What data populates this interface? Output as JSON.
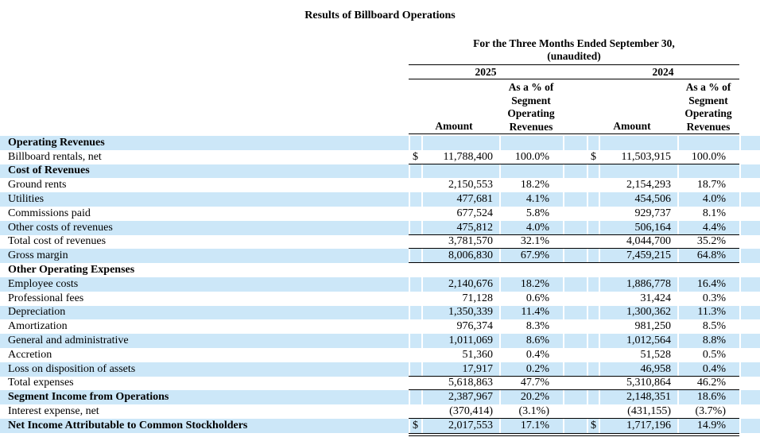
{
  "title": "Results of Billboard Operations",
  "table": {
    "period_header_line1": "For the Three Months Ended September 30,",
    "period_header_line2": "(unaudited)",
    "years": [
      "2025",
      "2024"
    ],
    "columns": {
      "amount": "Amount",
      "pct_lines": [
        "As a % of",
        "Segment",
        "Operating",
        "Revenues"
      ]
    },
    "colors": {
      "stripe_blue": "#cce7f8",
      "rule_black": "#000000",
      "text": "#000000"
    },
    "rows": [
      {
        "label": "Operating Revenues",
        "bold": true,
        "shaded": true
      },
      {
        "label": "Billboard rentals, net",
        "dollar": "$",
        "a1": "11,788,400",
        "p1": "100.0%",
        "a2": "11,503,915",
        "p2": "100.0%",
        "rule": "single"
      },
      {
        "label": "Cost of Revenues",
        "bold": true,
        "shaded": true
      },
      {
        "label": "Ground rents",
        "a1": "2,150,553",
        "p1": "18.2%",
        "a2": "2,154,293",
        "p2": "18.7%"
      },
      {
        "label": "Utilities",
        "shaded": true,
        "a1": "477,681",
        "p1": "4.1%",
        "a2": "454,506",
        "p2": "4.0%"
      },
      {
        "label": "Commissions paid",
        "a1": "677,524",
        "p1": "5.8%",
        "a2": "929,737",
        "p2": "8.1%"
      },
      {
        "label": "Other costs of revenues",
        "shaded": true,
        "a1": "475,812",
        "p1": "4.0%",
        "a2": "506,164",
        "p2": "4.4%",
        "rule": "single"
      },
      {
        "label": "Total cost of revenues",
        "a1": "3,781,570",
        "p1": "32.1%",
        "a2": "4,044,700",
        "p2": "35.2%",
        "rule": "single"
      },
      {
        "label": "Gross margin",
        "shaded": true,
        "a1": "8,006,830",
        "p1": "67.9%",
        "a2": "7,459,215",
        "p2": "64.8%",
        "rule": "single"
      },
      {
        "label": "Other Operating Expenses",
        "bold": true
      },
      {
        "label": "Employee costs",
        "shaded": true,
        "a1": "2,140,676",
        "p1": "18.2%",
        "a2": "1,886,778",
        "p2": "16.4%"
      },
      {
        "label": "Professional fees",
        "a1": "71,128",
        "p1": "0.6%",
        "a2": "31,424",
        "p2": "0.3%"
      },
      {
        "label": "Depreciation",
        "shaded": true,
        "a1": "1,350,339",
        "p1": "11.4%",
        "a2": "1,300,362",
        "p2": "11.3%"
      },
      {
        "label": "Amortization",
        "a1": "976,374",
        "p1": "8.3%",
        "a2": "981,250",
        "p2": "8.5%"
      },
      {
        "label": "General and administrative",
        "shaded": true,
        "a1": "1,011,069",
        "p1": "8.6%",
        "a2": "1,012,564",
        "p2": "8.8%"
      },
      {
        "label": "Accretion",
        "a1": "51,360",
        "p1": "0.4%",
        "a2": "51,528",
        "p2": "0.5%"
      },
      {
        "label": "Loss on disposition of assets",
        "shaded": true,
        "a1": "17,917",
        "p1": "0.2%",
        "a2": "46,958",
        "p2": "0.4%",
        "rule": "single"
      },
      {
        "label": "Total expenses",
        "a1": "5,618,863",
        "p1": "47.7%",
        "a2": "5,310,864",
        "p2": "46.2%",
        "rule": "single"
      },
      {
        "label": "Segment Income from Operations",
        "bold": true,
        "shaded": true,
        "a1": "2,387,967",
        "p1": "20.2%",
        "a2": "2,148,351",
        "p2": "18.6%"
      },
      {
        "label": "Interest expense, net",
        "a1": "(370,414)",
        "p1": "(3.1%)",
        "a2": "(431,155)",
        "p2": "(3.7%)",
        "rule": "single"
      },
      {
        "label": "Net Income Attributable to Common Stockholders",
        "bold": true,
        "shaded": true,
        "dollar": "$",
        "a1": "2,017,553",
        "p1": "17.1%",
        "a2": "1,717,196",
        "p2": "14.9%",
        "rule": "double"
      }
    ]
  }
}
